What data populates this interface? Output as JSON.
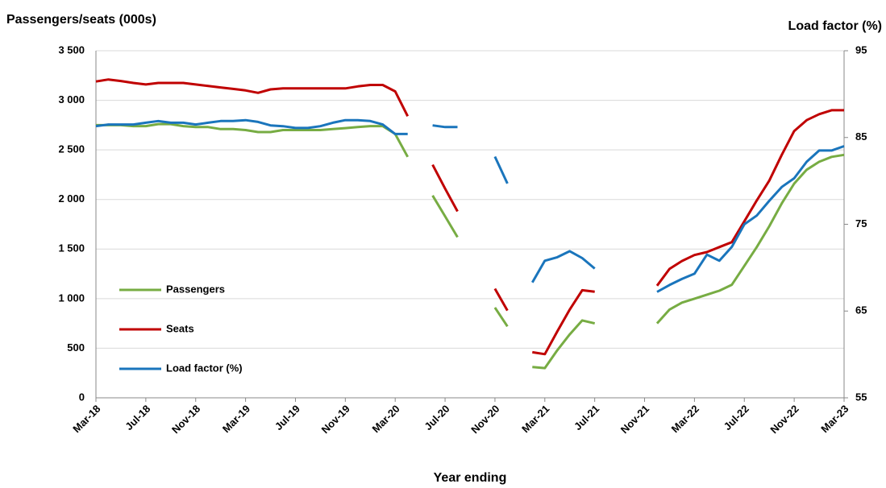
{
  "chart_data": {
    "type": "line",
    "y_label": "Passengers/seats (000s)",
    "y2_label": "Load factor (%)",
    "x_label": "Year ending",
    "categories": [
      "Mar-18",
      null,
      null,
      null,
      "Jul-18",
      null,
      null,
      null,
      "Nov-18",
      null,
      null,
      null,
      "Mar-19",
      null,
      null,
      null,
      "Jul-19",
      null,
      null,
      null,
      "Nov-19",
      null,
      null,
      null,
      "Mar-20",
      null,
      null,
      null,
      "Jul-20",
      null,
      null,
      null,
      "Nov-20",
      null,
      null,
      null,
      "Mar-21",
      null,
      null,
      null,
      "Jul-21",
      null,
      null,
      null,
      "Nov-21",
      null,
      null,
      null,
      "Mar-22",
      null,
      null,
      null,
      "Jul-22",
      null,
      null,
      null,
      "Nov-22",
      null,
      null,
      null,
      "Mar-23"
    ],
    "ylim": [
      0,
      3500
    ],
    "yticks": [
      0,
      500,
      {
        "value": 1000,
        "label": "1 000"
      },
      {
        "value": 1500,
        "label": "1 500"
      },
      {
        "value": 2000,
        "label": "2 000"
      },
      {
        "value": 2500,
        "label": "2 500"
      },
      {
        "value": 3000,
        "label": "3 000"
      },
      {
        "value": 3500,
        "label": "3 500"
      }
    ],
    "y2lim": [
      55,
      95
    ],
    "y2ticks": [
      55,
      65,
      75,
      85,
      95
    ],
    "grid": true,
    "legend": "left",
    "series": [
      {
        "name": "Passengers",
        "color": "#77ac43",
        "values": [
          2750,
          2750,
          2750,
          2740,
          2740,
          2760,
          2760,
          2740,
          2730,
          2730,
          2710,
          2710,
          2700,
          2680,
          2680,
          2700,
          2700,
          2700,
          2700,
          2710,
          2720,
          2730,
          2740,
          2740,
          2660,
          2430,
          null,
          2040,
          1830,
          1620,
          null,
          null,
          910,
          720,
          null,
          310,
          300,
          480,
          640,
          780,
          750,
          null,
          null,
          null,
          null,
          750,
          890,
          960,
          1000,
          1040,
          1080,
          1140,
          1330,
          1520,
          1730,
          1960,
          2160,
          2300,
          2380,
          2430,
          2450
        ]
      },
      {
        "name": "Seats",
        "color": "#c00000",
        "values": [
          3190,
          3210,
          3195,
          3175,
          3160,
          3175,
          3175,
          3175,
          3160,
          3145,
          3130,
          3115,
          3100,
          3075,
          3110,
          3120,
          3120,
          3120,
          3120,
          3120,
          3120,
          3140,
          3155,
          3155,
          3090,
          2840,
          null,
          2350,
          2110,
          1880,
          null,
          null,
          1100,
          880,
          null,
          460,
          440,
          670,
          890,
          1085,
          1070,
          null,
          null,
          null,
          null,
          1130,
          1300,
          1380,
          1440,
          1470,
          1520,
          1570,
          1780,
          1990,
          2190,
          2450,
          2690,
          2800,
          2860,
          2900,
          2900
        ]
      },
      {
        "name": "Load factor (%)",
        "color": "#1a75bc",
        "axis": "y2",
        "values": [
          86.3,
          86.5,
          86.5,
          86.5,
          86.7,
          86.9,
          86.7,
          86.7,
          86.5,
          86.7,
          86.9,
          86.9,
          87.0,
          86.8,
          86.4,
          86.3,
          86.1,
          86.1,
          86.3,
          86.7,
          87.0,
          87.0,
          86.9,
          86.5,
          85.4,
          85.4,
          null,
          86.4,
          86.2,
          86.2,
          null,
          null,
          82.8,
          79.7,
          null,
          68.3,
          70.8,
          71.2,
          71.9,
          71.1,
          69.9,
          null,
          null,
          null,
          null,
          67.2,
          68.0,
          68.7,
          69.3,
          71.5,
          70.8,
          72.4,
          75.0,
          76.0,
          77.7,
          79.3,
          80.3,
          82.2,
          83.5,
          83.5,
          84.0
        ]
      }
    ]
  }
}
